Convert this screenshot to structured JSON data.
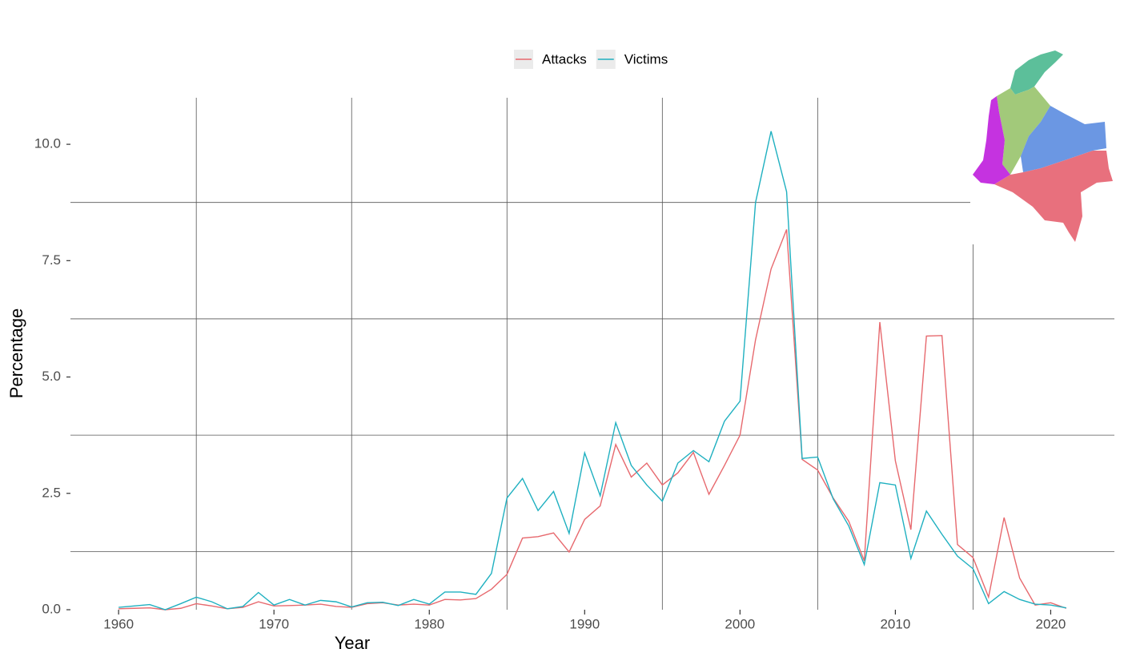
{
  "chart_data": {
    "type": "line",
    "x_label": "Year",
    "y_label": "Percentage",
    "x": [
      1960,
      1961,
      1962,
      1963,
      1964,
      1965,
      1966,
      1967,
      1968,
      1969,
      1970,
      1971,
      1972,
      1973,
      1974,
      1975,
      1976,
      1977,
      1978,
      1979,
      1980,
      1981,
      1982,
      1983,
      1984,
      1985,
      1986,
      1987,
      1988,
      1989,
      1990,
      1991,
      1992,
      1993,
      1994,
      1995,
      1996,
      1997,
      1998,
      1999,
      2000,
      2001,
      2002,
      2003,
      2004,
      2005,
      2006,
      2007,
      2008,
      2009,
      2010,
      2011,
      2012,
      2013,
      2014,
      2015,
      2016,
      2017,
      2018,
      2019,
      2020,
      2021
    ],
    "series": [
      {
        "name": "Attacks",
        "color": "#e7696e",
        "values": [
          0.02,
          0.03,
          0.04,
          0.0,
          0.03,
          0.13,
          0.08,
          0.02,
          0.05,
          0.17,
          0.08,
          0.09,
          0.1,
          0.12,
          0.07,
          0.05,
          0.13,
          0.15,
          0.1,
          0.12,
          0.1,
          0.22,
          0.21,
          0.24,
          0.44,
          0.76,
          1.54,
          1.57,
          1.65,
          1.24,
          1.94,
          2.23,
          3.55,
          2.85,
          3.15,
          2.68,
          2.94,
          3.38,
          2.48,
          3.1,
          3.75,
          5.8,
          7.32,
          8.17,
          3.23,
          3.0,
          2.4,
          1.9,
          1.05,
          6.18,
          3.2,
          1.72,
          5.88,
          5.89,
          1.4,
          1.12,
          0.27,
          1.98,
          0.68,
          0.1,
          0.15,
          0.03
        ]
      },
      {
        "name": "Victims",
        "color": "#1fb0c0",
        "values": [
          0.05,
          0.08,
          0.11,
          0.0,
          0.13,
          0.27,
          0.17,
          0.02,
          0.07,
          0.37,
          0.1,
          0.22,
          0.1,
          0.2,
          0.17,
          0.06,
          0.15,
          0.16,
          0.09,
          0.22,
          0.12,
          0.38,
          0.38,
          0.33,
          0.78,
          2.4,
          2.82,
          2.13,
          2.54,
          1.64,
          3.37,
          2.45,
          4.02,
          3.1,
          2.68,
          2.33,
          3.15,
          3.42,
          3.18,
          4.05,
          4.48,
          8.75,
          10.28,
          8.98,
          3.25,
          3.28,
          2.38,
          1.8,
          0.97,
          2.73,
          2.68,
          1.1,
          2.12,
          1.62,
          1.15,
          0.88,
          0.13,
          0.39,
          0.22,
          0.12,
          0.1,
          0.04
        ]
      }
    ],
    "xlim": [
      1956.9,
      2024.1
    ],
    "ylim": [
      0,
      11
    ],
    "xticks": [
      1960,
      1970,
      1980,
      1990,
      2000,
      2010,
      2020
    ],
    "yticks": [
      {
        "value": 0,
        "label": "0.0"
      },
      2.5,
      {
        "value": 5,
        "label": "5.0"
      },
      7.5,
      {
        "value": 10,
        "label": "10.0"
      }
    ],
    "minor_grid_x": [
      1965,
      1975,
      1985,
      1995,
      2005,
      2015
    ],
    "minor_grid_y": [
      1.25,
      3.75,
      6.25,
      8.75
    ],
    "legend": "top"
  }
}
